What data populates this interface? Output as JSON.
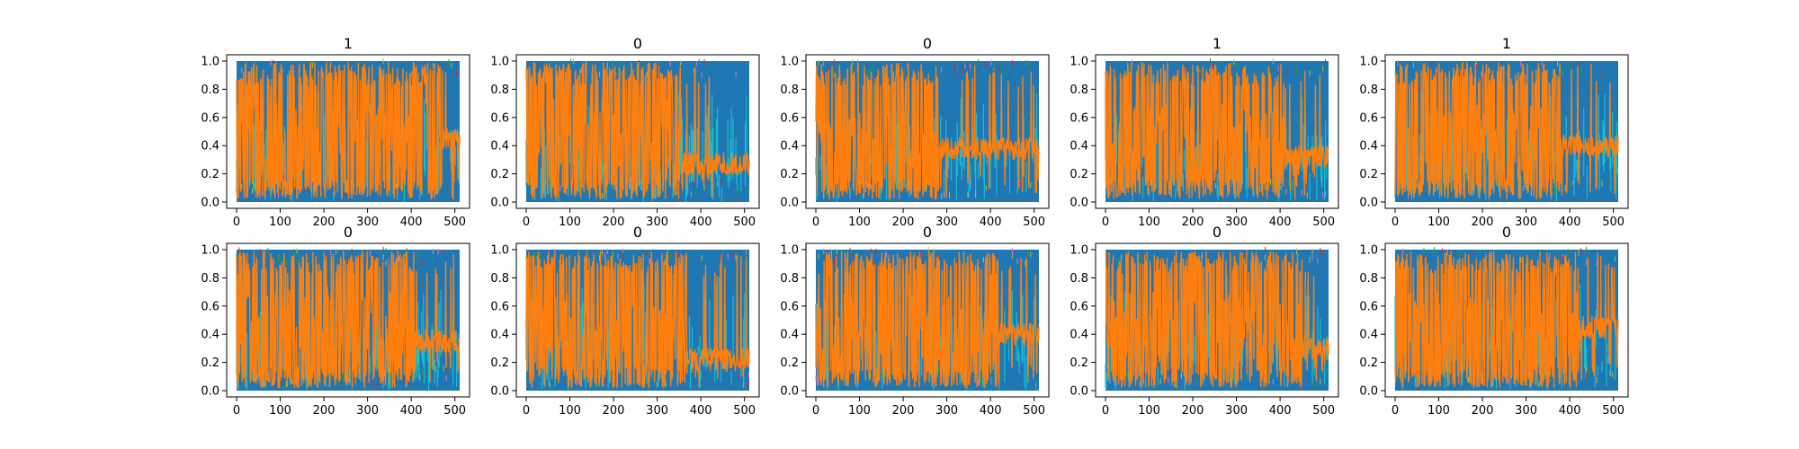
{
  "colors": {
    "background": "#ffffff",
    "series_blue": "#1f77b4",
    "series_orange": "#ff7f0e",
    "series_cyan": "#17becf",
    "series_olive": "#bcbd22",
    "series_green": "#2ca02c",
    "series_pink": "#e377c2",
    "series_red": "#d62728"
  },
  "chart_data": [
    {
      "type": "line",
      "title": "1",
      "xlim": [
        0,
        511
      ],
      "ylim": [
        0.0,
        1.0
      ],
      "xticks": [
        "0",
        "100",
        "200",
        "300",
        "400",
        "500"
      ],
      "yticks": [
        "0.0",
        "0.2",
        "0.4",
        "0.6",
        "0.8",
        "1.0"
      ],
      "trend": {
        "breakpoint": 0.92,
        "base_level": 0.48,
        "tail_level": 0.45
      },
      "seed": 11
    },
    {
      "type": "line",
      "title": "0",
      "xlim": [
        0,
        511
      ],
      "ylim": [
        0.0,
        1.0
      ],
      "xticks": [
        "0",
        "100",
        "200",
        "300",
        "400",
        "500"
      ],
      "yticks": [
        "0.0",
        "0.2",
        "0.4",
        "0.6",
        "0.8",
        "1.0"
      ],
      "trend": {
        "breakpoint": 0.7,
        "base_level": 0.5,
        "tail_level": 0.27
      },
      "seed": 23
    },
    {
      "type": "line",
      "title": "0",
      "xlim": [
        0,
        511
      ],
      "ylim": [
        0.0,
        1.0
      ],
      "xticks": [
        "0",
        "100",
        "200",
        "300",
        "400",
        "500"
      ],
      "yticks": [
        "0.0",
        "0.2",
        "0.4",
        "0.6",
        "0.8",
        "1.0"
      ],
      "trend": {
        "breakpoint": 0.55,
        "base_level": 0.45,
        "tail_level": 0.38
      },
      "seed": 37
    },
    {
      "type": "line",
      "title": "1",
      "xlim": [
        0,
        511
      ],
      "ylim": [
        0.0,
        1.0
      ],
      "xticks": [
        "0",
        "100",
        "200",
        "300",
        "400",
        "500"
      ],
      "yticks": [
        "0.0",
        "0.2",
        "0.4",
        "0.6",
        "0.8",
        "1.0"
      ],
      "trend": {
        "breakpoint": 0.8,
        "base_level": 0.45,
        "tail_level": 0.32
      },
      "seed": 41
    },
    {
      "type": "line",
      "title": "1",
      "xlim": [
        0,
        511
      ],
      "ylim": [
        0.0,
        1.0
      ],
      "xticks": [
        "0",
        "100",
        "200",
        "300",
        "400",
        "500"
      ],
      "yticks": [
        "0.0",
        "0.2",
        "0.4",
        "0.6",
        "0.8",
        "1.0"
      ],
      "trend": {
        "breakpoint": 0.74,
        "base_level": 0.45,
        "tail_level": 0.4
      },
      "seed": 53
    },
    {
      "type": "line",
      "title": "0",
      "xlim": [
        0,
        511
      ],
      "ylim": [
        0.0,
        1.0
      ],
      "xticks": [
        "0",
        "100",
        "200",
        "300",
        "400",
        "500"
      ],
      "yticks": [
        "0.0",
        "0.2",
        "0.4",
        "0.6",
        "0.8",
        "1.0"
      ],
      "trend": {
        "breakpoint": 0.8,
        "base_level": 0.5,
        "tail_level": 0.35
      },
      "seed": 67
    },
    {
      "type": "line",
      "title": "0",
      "xlim": [
        0,
        511
      ],
      "ylim": [
        0.0,
        1.0
      ],
      "xticks": [
        "0",
        "100",
        "200",
        "300",
        "400",
        "500"
      ],
      "yticks": [
        "0.0",
        "0.2",
        "0.4",
        "0.6",
        "0.8",
        "1.0"
      ],
      "trend": {
        "breakpoint": 0.72,
        "base_level": 0.45,
        "tail_level": 0.22
      },
      "seed": 71
    },
    {
      "type": "line",
      "title": "0",
      "xlim": [
        0,
        511
      ],
      "ylim": [
        0.0,
        1.0
      ],
      "xticks": [
        "0",
        "100",
        "200",
        "300",
        "400",
        "500"
      ],
      "yticks": [
        "0.0",
        "0.2",
        "0.4",
        "0.6",
        "0.8",
        "1.0"
      ],
      "trend": {
        "breakpoint": 0.82,
        "base_level": 0.45,
        "tail_level": 0.4
      },
      "seed": 83
    },
    {
      "type": "line",
      "title": "0",
      "xlim": [
        0,
        511
      ],
      "ylim": [
        0.0,
        1.0
      ],
      "xticks": [
        "0",
        "100",
        "200",
        "300",
        "400",
        "500"
      ],
      "yticks": [
        "0.0",
        "0.2",
        "0.4",
        "0.6",
        "0.8",
        "1.0"
      ],
      "trend": {
        "breakpoint": 0.88,
        "base_level": 0.45,
        "tail_level": 0.3
      },
      "seed": 97
    },
    {
      "type": "line",
      "title": "0",
      "xlim": [
        0,
        511
      ],
      "ylim": [
        0.0,
        1.0
      ],
      "xticks": [
        "0",
        "100",
        "200",
        "300",
        "400",
        "500"
      ],
      "yticks": [
        "0.0",
        "0.2",
        "0.4",
        "0.6",
        "0.8",
        "1.0"
      ],
      "trend": {
        "breakpoint": 0.82,
        "base_level": 0.45,
        "tail_level": 0.45
      },
      "seed": 101
    }
  ]
}
